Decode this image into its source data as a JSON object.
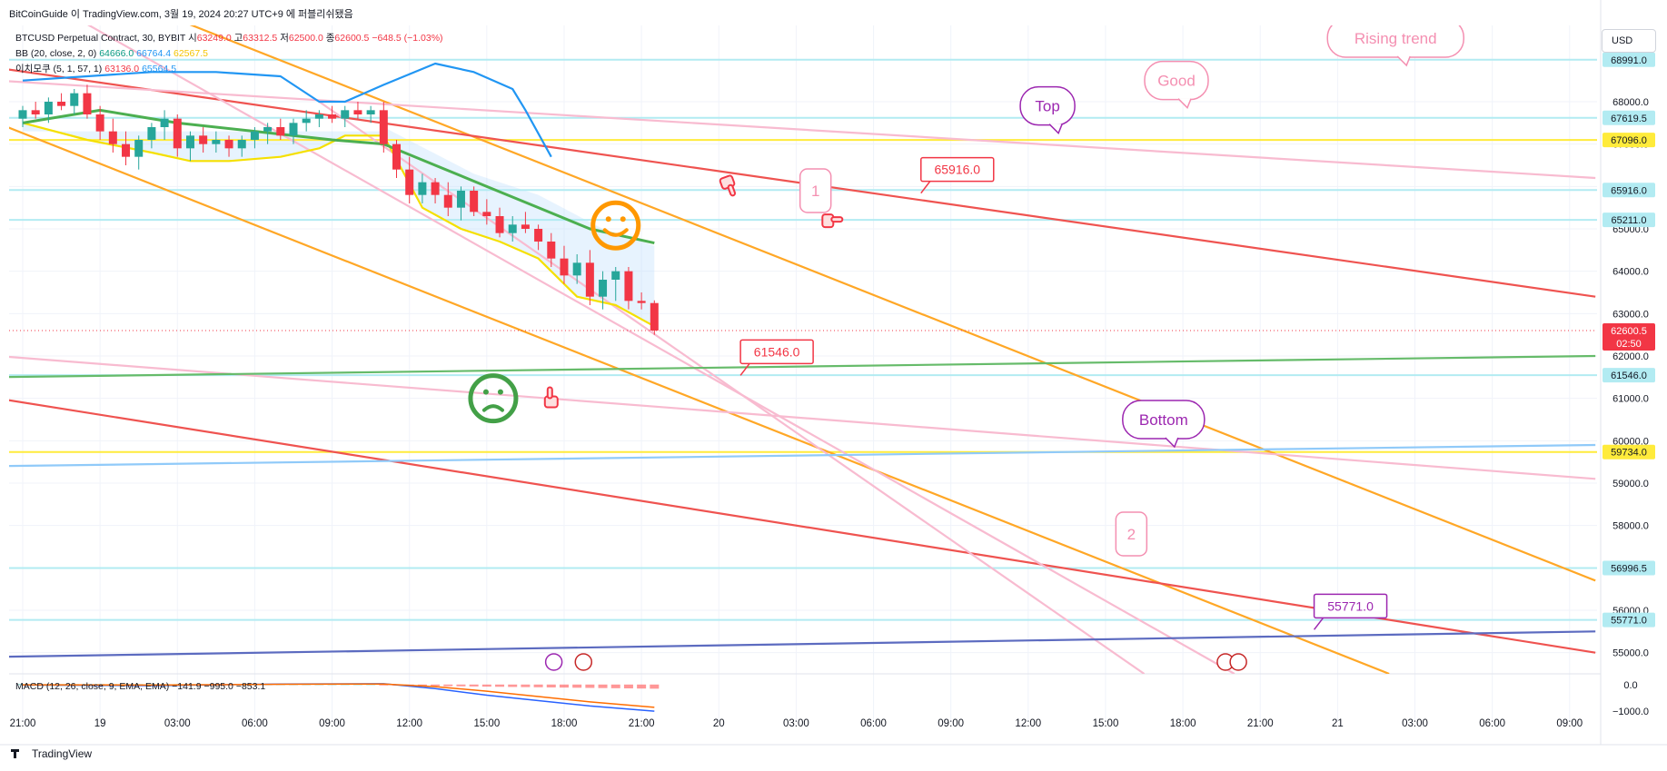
{
  "page": {
    "caption": "BitCoinGuide 이 TradingView.com, 3월 19, 2024 20:27 UTC+9 에 퍼블리쉬됐음",
    "footer_brand": "TradingView",
    "currency": "USD"
  },
  "legend": {
    "symbol": "BTCUSD Perpetual Contract, 30, BYBIT",
    "o_label": "시",
    "o_value": "63249.0",
    "h_label": "고",
    "h_value": "63312.5",
    "l_label": "저",
    "l_value": "62500.0",
    "c_label": "종",
    "c_value": "62600.5",
    "change": "−648.5 (−1.03%)",
    "bb_label": "BB (20, close, 2, 0)",
    "bb_basis": "64666.0",
    "bb_upper": "66764.4",
    "bb_lower": "62567.5",
    "ichimoku_label": "이치모쿠 (5, 1, 57, 1)",
    "ichi_a": "63136.0",
    "ichi_b": "65564.5",
    "macd_label": "MACD (12, 26, close, 9, EMA, EMA)",
    "macd_hist": "−141.9",
    "macd_line": "−995.0",
    "macd_signal": "−853.1"
  },
  "colors": {
    "up": "#26a69a",
    "down": "#f23645",
    "orange": "#ffa726",
    "red": "#ef5350",
    "pink": "#f8bbd0",
    "green": "#66bb6a",
    "yellow": "#ffeb3b",
    "blue": "#2196f3",
    "navy": "#5c6bc0",
    "cyan": "#b2ebf2",
    "purple": "#9c27b0",
    "cloud": "#bbdefb"
  },
  "chart_data": {
    "type": "candlestick",
    "title": "BTCUSD Perpetual Contract, 30, BYBIT",
    "ylim": [
      54500,
      69800
    ],
    "price_ticks": [
      55000,
      56000,
      57000,
      58000,
      59000,
      60000,
      61000,
      62000,
      63000,
      64000,
      65000,
      66000,
      67000,
      68000
    ],
    "price_tick_labels": [
      "55000.0",
      "56000.0",
      "57000.0",
      "58000.0",
      "59000.0",
      "60000.0",
      "61000.0",
      "62000.0",
      "63000.0",
      "64000.0",
      "65000.0",
      "66000.0",
      "67000.0",
      "68000.0"
    ],
    "time_ticks": [
      {
        "t": 0,
        "label": "21:00"
      },
      {
        "t": 6,
        "label": "19"
      },
      {
        "t": 12,
        "label": "03:00"
      },
      {
        "t": 18,
        "label": "06:00"
      },
      {
        "t": 24,
        "label": "09:00"
      },
      {
        "t": 30,
        "label": "12:00"
      },
      {
        "t": 36,
        "label": "15:00"
      },
      {
        "t": 42,
        "label": "18:00"
      },
      {
        "t": 48,
        "label": "21:00"
      },
      {
        "t": 54,
        "label": "20"
      },
      {
        "t": 60,
        "label": "03:00"
      },
      {
        "t": 66,
        "label": "06:00"
      },
      {
        "t": 72,
        "label": "09:00"
      },
      {
        "t": 78,
        "label": "12:00"
      },
      {
        "t": 84,
        "label": "15:00"
      },
      {
        "t": 90,
        "label": "18:00"
      },
      {
        "t": 96,
        "label": "21:00"
      },
      {
        "t": 102,
        "label": "21"
      },
      {
        "t": 108,
        "label": "03:00"
      },
      {
        "t": 114,
        "label": "06:00"
      },
      {
        "t": 120,
        "label": "09:00"
      }
    ],
    "candles": [
      [
        0,
        67600,
        67900,
        67400,
        67800
      ],
      [
        1,
        67800,
        68000,
        67600,
        67700
      ],
      [
        2,
        67700,
        68100,
        67500,
        68000
      ],
      [
        3,
        68000,
        68200,
        67800,
        67900
      ],
      [
        4,
        67900,
        68300,
        67700,
        68200
      ],
      [
        5,
        68200,
        68400,
        67600,
        67700
      ],
      [
        6,
        67700,
        67900,
        67100,
        67300
      ],
      [
        7,
        67300,
        67600,
        66800,
        67000
      ],
      [
        8,
        67000,
        67300,
        66500,
        66700
      ],
      [
        9,
        66700,
        67200,
        66400,
        67100
      ],
      [
        10,
        67100,
        67500,
        66900,
        67400
      ],
      [
        11,
        67400,
        67800,
        67100,
        67600
      ],
      [
        12,
        67600,
        67700,
        66700,
        66900
      ],
      [
        13,
        66900,
        67300,
        66600,
        67200
      ],
      [
        14,
        67200,
        67400,
        66800,
        67000
      ],
      [
        15,
        67000,
        67300,
        66800,
        67100
      ],
      [
        16,
        67100,
        67200,
        66700,
        66900
      ],
      [
        17,
        66900,
        67200,
        66700,
        67100
      ],
      [
        18,
        67100,
        67400,
        66900,
        67300
      ],
      [
        19,
        67300,
        67500,
        67000,
        67400
      ],
      [
        20,
        67400,
        67600,
        67100,
        67200
      ],
      [
        21,
        67200,
        67600,
        67000,
        67500
      ],
      [
        22,
        67500,
        67800,
        67300,
        67600
      ],
      [
        23,
        67600,
        67800,
        67400,
        67700
      ],
      [
        24,
        67700,
        67900,
        67500,
        67600
      ],
      [
        25,
        67600,
        67900,
        67400,
        67800
      ],
      [
        26,
        67800,
        68000,
        67600,
        67700
      ],
      [
        27,
        67700,
        67900,
        67500,
        67800
      ],
      [
        28,
        67800,
        68000,
        66800,
        67000
      ],
      [
        29,
        67000,
        67100,
        66200,
        66400
      ],
      [
        30,
        66400,
        66700,
        65600,
        65800
      ],
      [
        31,
        65800,
        66300,
        65600,
        66100
      ],
      [
        32,
        66100,
        66200,
        65600,
        65800
      ],
      [
        33,
        65800,
        66100,
        65300,
        65500
      ],
      [
        34,
        65500,
        66000,
        65200,
        65900
      ],
      [
        35,
        65900,
        66000,
        65300,
        65400
      ],
      [
        36,
        65400,
        65700,
        65100,
        65300
      ],
      [
        37,
        65300,
        65500,
        64800,
        64900
      ],
      [
        38,
        64900,
        65300,
        64700,
        65100
      ],
      [
        39,
        65100,
        65400,
        64900,
        65000
      ],
      [
        40,
        65000,
        65100,
        64500,
        64700
      ],
      [
        41,
        64700,
        64900,
        64100,
        64300
      ],
      [
        42,
        64300,
        64600,
        63700,
        63900
      ],
      [
        43,
        63900,
        64400,
        63700,
        64200
      ],
      [
        44,
        64200,
        64500,
        63200,
        63400
      ],
      [
        45,
        63400,
        64000,
        63100,
        63800
      ],
      [
        46,
        63800,
        64100,
        63300,
        64000
      ],
      [
        47,
        64000,
        64100,
        63100,
        63300
      ],
      [
        48,
        63300,
        63500,
        63100,
        63250
      ],
      [
        49,
        63249,
        63312.5,
        62500,
        62600.5
      ]
    ],
    "bb_basis": [
      [
        0,
        67500
      ],
      [
        6,
        67800
      ],
      [
        12,
        67500
      ],
      [
        18,
        67300
      ],
      [
        24,
        67100
      ],
      [
        28,
        67000
      ],
      [
        32,
        66500
      ],
      [
        36,
        66000
      ],
      [
        40,
        65500
      ],
      [
        44,
        65000
      ],
      [
        49,
        64666
      ]
    ],
    "ichimoku_blue": [
      [
        0,
        68500
      ],
      [
        5,
        68600
      ],
      [
        10,
        68700
      ],
      [
        15,
        68700
      ],
      [
        20,
        68600
      ],
      [
        23,
        68000
      ],
      [
        25,
        68000
      ],
      [
        28,
        68400
      ],
      [
        32,
        68900
      ],
      [
        35,
        68700
      ],
      [
        38,
        68300
      ],
      [
        39,
        67800
      ],
      [
        41,
        66700
      ]
    ],
    "ichimoku_yellow": [
      [
        0,
        67500
      ],
      [
        5,
        67100
      ],
      [
        10,
        66800
      ],
      [
        13,
        66600
      ],
      [
        16,
        66600
      ],
      [
        20,
        66700
      ],
      [
        23,
        66900
      ],
      [
        25,
        67200
      ],
      [
        28,
        67200
      ],
      [
        31,
        65500
      ],
      [
        34,
        65000
      ],
      [
        37,
        64700
      ],
      [
        40,
        64300
      ],
      [
        43,
        63400
      ],
      [
        46,
        63200
      ],
      [
        49,
        62700
      ]
    ],
    "cloud_band": [
      [
        0,
        67300
      ],
      [
        28,
        67300
      ],
      [
        28,
        67400
      ],
      [
        35,
        66300
      ],
      [
        40,
        65800
      ],
      [
        45,
        65000
      ],
      [
        49,
        64600
      ]
    ],
    "hlines": [
      {
        "value": 68991.0,
        "label": "68991.0",
        "color": "#b2ebf2"
      },
      {
        "value": 67619.5,
        "label": "67619.5",
        "color": "#b2ebf2"
      },
      {
        "value": 67096.0,
        "label": "67096.0",
        "color": "#ffeb3b"
      },
      {
        "value": 65916.0,
        "label": "65916.0",
        "color": "#b2ebf2"
      },
      {
        "value": 65211.0,
        "label": "65211.0",
        "color": "#b2ebf2"
      },
      {
        "value": 61546.0,
        "label": "61546.0",
        "color": "#b2ebf2"
      },
      {
        "value": 59734.0,
        "label": "59734.0",
        "color": "#ffeb3b"
      },
      {
        "value": 56996.5,
        "label": "56996.5",
        "color": "#b2ebf2"
      },
      {
        "value": 55771.0,
        "label": "55771.0",
        "color": "#b2ebf2"
      }
    ],
    "current_price": {
      "value": 62600.5,
      "label": "62600.5",
      "timer": "02:50"
    },
    "trendlines": [
      {
        "color": "#ffa726",
        "from": [
          9,
          70300
        ],
        "to": [
          122,
          56700
        ]
      },
      {
        "color": "#ffa726",
        "from": [
          -2,
          67500
        ],
        "to": [
          106,
          54500
        ]
      },
      {
        "color": "#ef5350",
        "from": [
          -2,
          68800
        ],
        "to": [
          122,
          63400
        ]
      },
      {
        "color": "#ef5350",
        "from": [
          -2,
          61000
        ],
        "to": [
          122,
          55000
        ]
      },
      {
        "color": "#f8bbd0",
        "from": [
          -2,
          68500
        ],
        "to": [
          122,
          66200
        ]
      },
      {
        "color": "#f8bbd0",
        "from": [
          -2,
          62000
        ],
        "to": [
          122,
          59100
        ]
      },
      {
        "color": "#f8bbd0",
        "from": [
          4,
          70000
        ],
        "to": [
          94,
          54500
        ]
      },
      {
        "color": "#f8bbd0",
        "from": [
          23,
          68000
        ],
        "to": [
          87,
          54500
        ]
      },
      {
        "color": "#66bb6a",
        "from": [
          -2,
          61500
        ],
        "to": [
          122,
          62000
        ]
      },
      {
        "color": "#90caf9",
        "from": [
          -2,
          59400
        ],
        "to": [
          122,
          59900
        ]
      },
      {
        "color": "#5c6bc0",
        "from": [
          -2,
          54900
        ],
        "to": [
          122,
          55500
        ]
      }
    ],
    "annotations": [
      {
        "text": "Rising trend",
        "kind": "bubble",
        "t": 106.5,
        "v": 69500
      },
      {
        "text": "Good",
        "kind": "bubble",
        "t": 89.5,
        "v": 68500
      },
      {
        "text": "Top",
        "kind": "bubble",
        "t": 79.5,
        "v": 67900
      },
      {
        "text": "Bottom",
        "kind": "bubble",
        "t": 88.5,
        "v": 60500
      },
      {
        "text": "1",
        "kind": "box",
        "t": 61.5,
        "v": 65900
      },
      {
        "text": "2",
        "kind": "box",
        "t": 86,
        "v": 57800
      },
      {
        "text": "65916.0",
        "kind": "price-note",
        "t": 72.5,
        "v": 66400
      },
      {
        "text": "61546.0",
        "kind": "price-note",
        "t": 58.5,
        "v": 62100
      },
      {
        "text": "55771.0",
        "kind": "price-note",
        "t": 103,
        "v": 56100
      }
    ],
    "macd": {
      "ylim": [
        -1400,
        400
      ],
      "ticks": [
        0.0,
        -1000.0
      ],
      "tick_labels": [
        "0.0",
        "−1000.0"
      ],
      "macd_line": [
        [
          0,
          -20
        ],
        [
          10,
          -40
        ],
        [
          20,
          20
        ],
        [
          28,
          30
        ],
        [
          32,
          -150
        ],
        [
          36,
          -400
        ],
        [
          40,
          -600
        ],
        [
          44,
          -800
        ],
        [
          49,
          -995
        ]
      ],
      "signal_line": [
        [
          0,
          -10
        ],
        [
          10,
          -20
        ],
        [
          20,
          10
        ],
        [
          28,
          20
        ],
        [
          32,
          -80
        ],
        [
          36,
          -250
        ],
        [
          40,
          -450
        ],
        [
          44,
          -650
        ],
        [
          49,
          -853
        ]
      ]
    }
  }
}
